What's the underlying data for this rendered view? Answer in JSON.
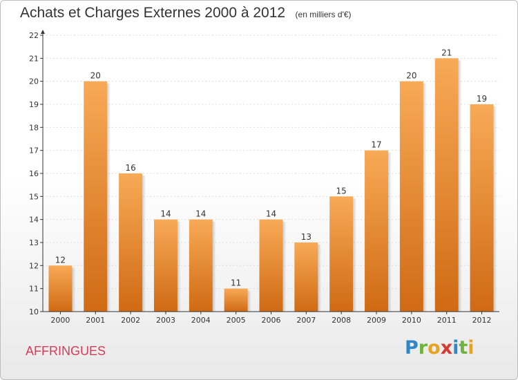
{
  "title": "Achats et Charges Externes 2000 à 2012",
  "unit": "(en milliers d'€)",
  "commune": "AFFRINGUES",
  "logo": {
    "letters": [
      "P",
      "r",
      "o",
      "x",
      "i",
      "t",
      "i"
    ],
    "colors": [
      "#2f86c8",
      "#6fb23c",
      "#e9a21e",
      "#d8382e",
      "#2f86c8",
      "#6fb23c",
      "#e9a21e"
    ]
  },
  "colors": {
    "bar_top": "#f8aa56",
    "bar_bottom": "#d06a14",
    "axis": "#333333",
    "grid": "#dddddd",
    "commune": "#d83a5a"
  },
  "chart_data": {
    "type": "bar",
    "categories": [
      "2000",
      "2001",
      "2002",
      "2003",
      "2004",
      "2005",
      "2006",
      "2007",
      "2008",
      "2009",
      "2010",
      "2011",
      "2012"
    ],
    "values": [
      12,
      20,
      16,
      14,
      14,
      11,
      14,
      13,
      15,
      17,
      20,
      21,
      19
    ],
    "ylim": [
      10,
      22
    ],
    "yticks": [
      10,
      11,
      12,
      13,
      14,
      15,
      16,
      17,
      18,
      19,
      20,
      21,
      22
    ],
    "grid": true
  }
}
